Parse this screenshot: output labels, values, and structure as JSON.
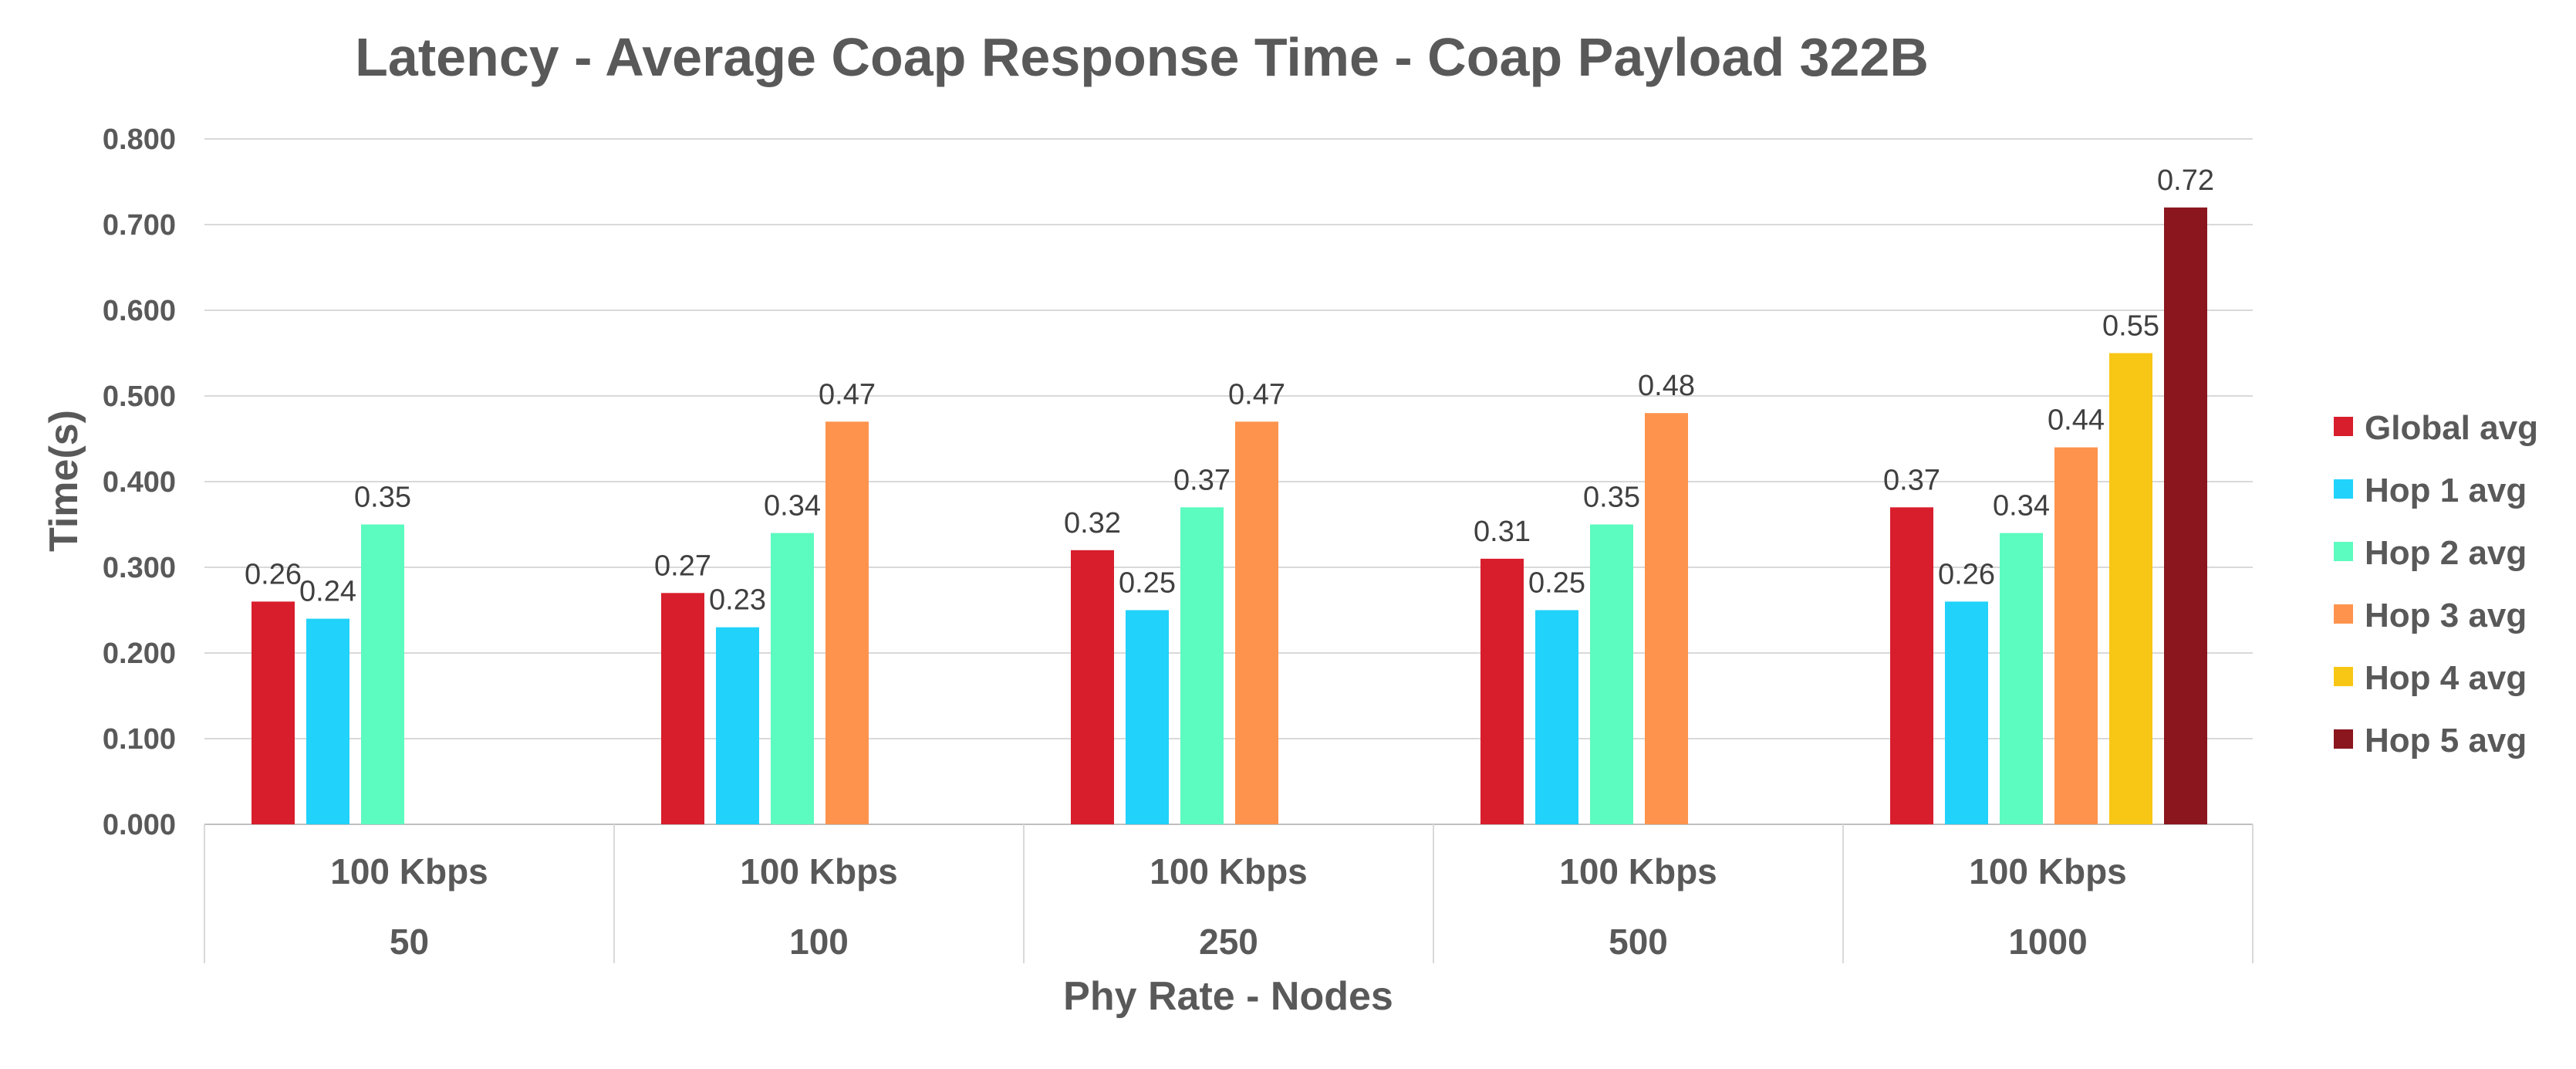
{
  "chart_data": {
    "type": "bar",
    "title": "Latency - Average Coap Response Time - Coap Payload 322B",
    "xlabel": "Phy Rate - Nodes",
    "ylabel": "Time(s)",
    "ylim": [
      0,
      0.8
    ],
    "yticks": [
      "0.000",
      "0.100",
      "0.200",
      "0.300",
      "0.400",
      "0.500",
      "0.600",
      "0.700",
      "0.800"
    ],
    "grid": true,
    "legend_position": "right",
    "categories": [
      {
        "rate": "100 Kbps",
        "nodes": "50"
      },
      {
        "rate": "100 Kbps",
        "nodes": "100"
      },
      {
        "rate": "100 Kbps",
        "nodes": "250"
      },
      {
        "rate": "100 Kbps",
        "nodes": "500"
      },
      {
        "rate": "100 Kbps",
        "nodes": "1000"
      }
    ],
    "series": [
      {
        "name": "Global avg",
        "color": "#d81e2c",
        "values": [
          0.26,
          0.27,
          0.32,
          0.31,
          0.37
        ],
        "labels": [
          "0.26",
          "0.27",
          "0.32",
          "0.31",
          "0.37"
        ]
      },
      {
        "name": "Hop 1 avg",
        "color": "#21d2fa",
        "values": [
          0.24,
          0.23,
          0.25,
          0.25,
          0.26
        ],
        "labels": [
          "0.24",
          "0.23",
          "0.25",
          "0.25",
          "0.26"
        ]
      },
      {
        "name": "Hop 2 avg",
        "color": "#5cfbbf",
        "values": [
          0.35,
          0.34,
          0.37,
          0.35,
          0.34
        ],
        "labels": [
          "0.35",
          "0.34",
          "0.37",
          "0.35",
          "0.34"
        ]
      },
      {
        "name": "Hop 3 avg",
        "color": "#fd934d",
        "values": [
          null,
          0.47,
          0.47,
          0.48,
          0.44
        ],
        "labels": [
          null,
          "0.47",
          "0.47",
          "0.48",
          "0.44"
        ]
      },
      {
        "name": "Hop 4 avg",
        "color": "#f8c614",
        "values": [
          null,
          null,
          null,
          null,
          0.55
        ],
        "labels": [
          null,
          null,
          null,
          null,
          "0.55"
        ]
      },
      {
        "name": "Hop 5 avg",
        "color": "#8b161d",
        "values": [
          null,
          null,
          null,
          null,
          0.72
        ],
        "labels": [
          null,
          null,
          null,
          null,
          "0.72"
        ]
      }
    ]
  }
}
